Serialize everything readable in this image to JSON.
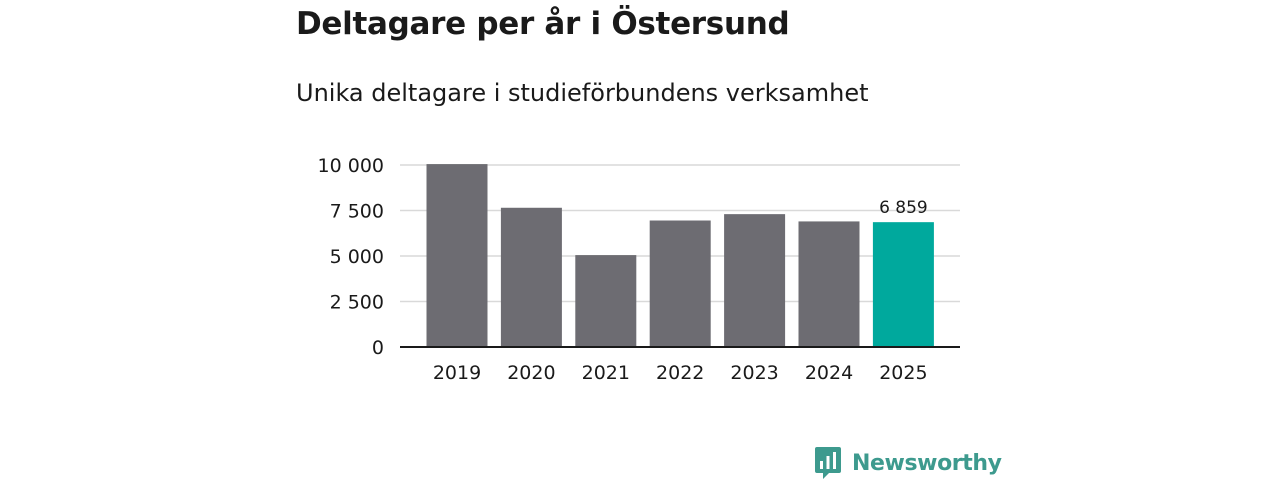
{
  "title": "Deltagare per år i Östersund",
  "subtitle": "Unika deltagare i studieförbundens verksamhet",
  "brand": {
    "name": "Newsworthy",
    "color": "#3d9a8e",
    "icon": "newsworthy-logo-icon"
  },
  "colors": {
    "bar": "#6d6c72",
    "highlight": "#00a99d",
    "grid": "#d9d9d9",
    "axis": "#1a1a1a",
    "text": "#1a1a1a"
  },
  "chart_data": {
    "type": "bar",
    "categories": [
      "2019",
      "2020",
      "2021",
      "2022",
      "2023",
      "2024",
      "2025"
    ],
    "values": [
      10050,
      7650,
      5050,
      6950,
      7300,
      6900,
      6859
    ],
    "highlight_index": 6,
    "data_labels": [
      {
        "index": 6,
        "text": "6 859"
      }
    ],
    "title": "Deltagare per år i Östersund",
    "subtitle": "Unika deltagare i studieförbundens verksamhet",
    "xlabel": "",
    "ylabel": "",
    "ylim": [
      0,
      10000
    ],
    "yticks": [
      {
        "value": 0,
        "label": "0"
      },
      {
        "value": 2500,
        "label": "2 500"
      },
      {
        "value": 5000,
        "label": "5 000"
      },
      {
        "value": 7500,
        "label": "7 500"
      },
      {
        "value": 10000,
        "label": "10 000"
      }
    ],
    "grid": true,
    "legend": "none"
  }
}
